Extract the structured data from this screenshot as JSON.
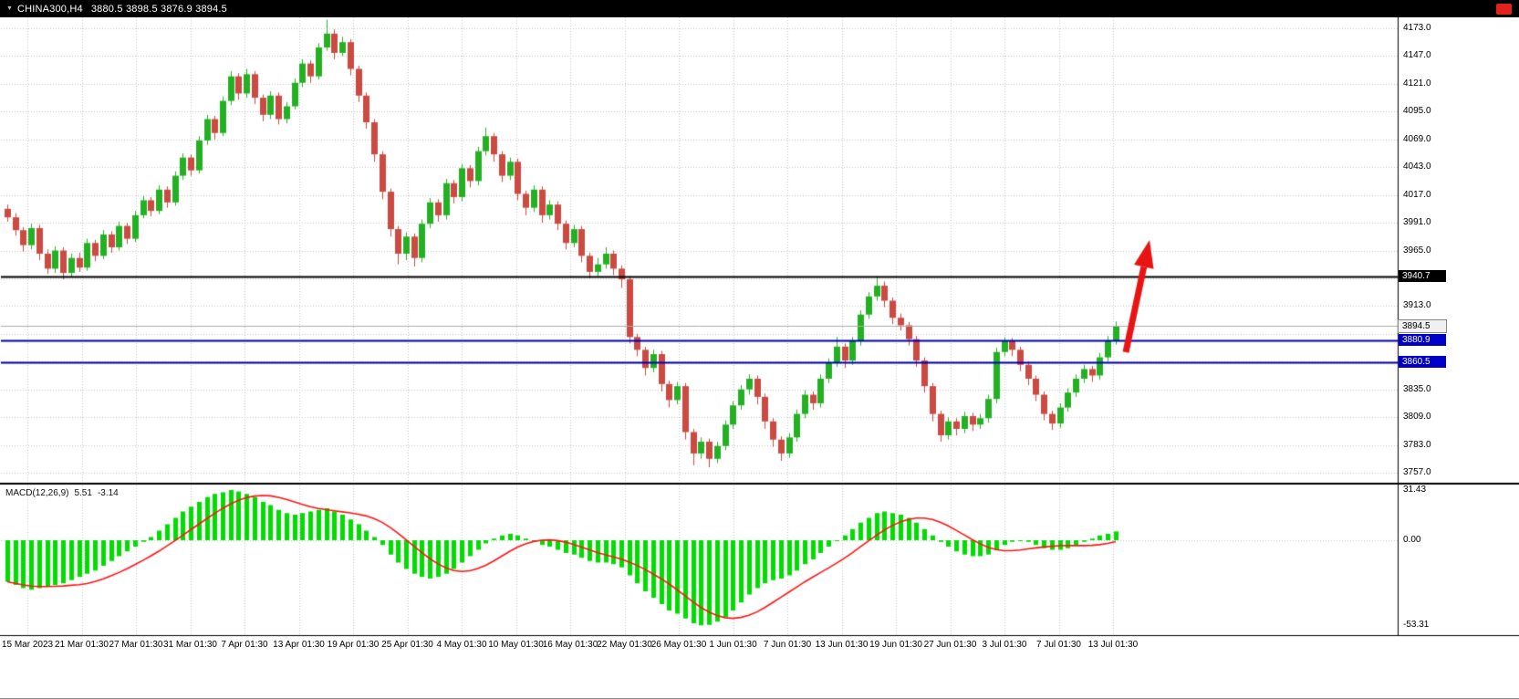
{
  "top_bar": {
    "marker_icon": "▼",
    "symbol": "CHINA300,H4",
    "ohlc_values": "3880.5 3898.5 3876.9 3894.5"
  },
  "indicator_label": {
    "name": "MACD(12,26,9)",
    "main_value": "5.51",
    "signal_value": "-3.14"
  },
  "price_axis": {
    "visible_labels": [
      4173,
      4147,
      4121,
      4095,
      4069,
      4043,
      4017,
      3991,
      3965,
      3913,
      3835,
      3809,
      3783,
      3757
    ]
  },
  "chart_data": {
    "type": "candlestick",
    "title": "CHINA300,H4",
    "timeframe": "H4",
    "last_ohlc": {
      "open": 3880.5,
      "high": 3898.5,
      "low": 3876.9,
      "close": 3894.5
    },
    "y_range": {
      "min": 3757,
      "max": 4173,
      "grid_step": 26
    },
    "x_labels": [
      "15 Mar 2023",
      "21 Mar 01:30",
      "27 Mar 01:30",
      "31 Mar 01:30",
      "7 Apr 01:30",
      "13 Apr 01:30",
      "19 Apr 01:30",
      "25 Apr 01:30",
      "4 May 01:30",
      "10 May 01:30",
      "16 May 01:30",
      "22 May 01:30",
      "26 May 01:30",
      "1 Jun 01:30",
      "7 Jun 01:30",
      "13 Jun 01:30",
      "19 Jun 01:30",
      "27 Jun 01:30",
      "3 Jul 01:30",
      "7 Jul 01:30",
      "13 Jul 01:30"
    ],
    "colors": {
      "bull": "#23b123",
      "bear": "#cb4a42",
      "grid": "#c6c6c6"
    },
    "candles": [
      [
        4004,
        4008,
        3992,
        3996
      ],
      [
        3996,
        4000,
        3979,
        3984
      ],
      [
        3984,
        3987,
        3964,
        3970
      ],
      [
        3970,
        3990,
        3966,
        3986
      ],
      [
        3986,
        3989,
        3956,
        3962
      ],
      [
        3962,
        3966,
        3943,
        3948
      ],
      [
        3948,
        3969,
        3944,
        3965
      ],
      [
        3965,
        3968,
        3938,
        3944
      ],
      [
        3944,
        3962,
        3940,
        3958
      ],
      [
        3958,
        3963,
        3945,
        3949
      ],
      [
        3949,
        3976,
        3946,
        3972
      ],
      [
        3972,
        3975,
        3955,
        3960
      ],
      [
        3960,
        3984,
        3957,
        3980
      ],
      [
        3980,
        3983,
        3963,
        3968
      ],
      [
        3968,
        3992,
        3965,
        3988
      ],
      [
        3988,
        3991,
        3971,
        3976
      ],
      [
        3976,
        4002,
        3973,
        3998
      ],
      [
        3998,
        4016,
        3995,
        4012
      ],
      [
        4012,
        4015,
        3997,
        4002
      ],
      [
        4002,
        4026,
        3999,
        4022
      ],
      [
        4022,
        4025,
        4005,
        4010
      ],
      [
        4010,
        4039,
        4007,
        4035
      ],
      [
        4035,
        4056,
        4031,
        4052
      ],
      [
        4052,
        4055,
        4035,
        4040
      ],
      [
        4040,
        4072,
        4037,
        4068
      ],
      [
        4068,
        4092,
        4064,
        4088
      ],
      [
        4088,
        4091,
        4069,
        4075
      ],
      [
        4075,
        4109,
        4072,
        4105
      ],
      [
        4105,
        4133,
        4101,
        4128
      ],
      [
        4128,
        4131,
        4106,
        4112
      ],
      [
        4112,
        4135,
        4108,
        4130
      ],
      [
        4130,
        4133,
        4102,
        4108
      ],
      [
        4108,
        4111,
        4086,
        4092
      ],
      [
        4092,
        4114,
        4088,
        4110
      ],
      [
        4110,
        4113,
        4083,
        4088
      ],
      [
        4088,
        4104,
        4084,
        4100
      ],
      [
        4100,
        4126,
        4097,
        4122
      ],
      [
        4122,
        4144,
        4118,
        4140
      ],
      [
        4140,
        4143,
        4122,
        4128
      ],
      [
        4128,
        4159,
        4125,
        4155
      ],
      [
        4155,
        4181,
        4152,
        4168
      ],
      [
        4168,
        4172,
        4144,
        4150
      ],
      [
        4150,
        4165,
        4147,
        4160
      ],
      [
        4160,
        4163,
        4129,
        4135
      ],
      [
        4135,
        4138,
        4104,
        4110
      ],
      [
        4110,
        4113,
        4079,
        4085
      ],
      [
        4085,
        4088,
        4048,
        4055
      ],
      [
        4055,
        4058,
        4013,
        4020
      ],
      [
        4020,
        4023,
        3978,
        3985
      ],
      [
        3985,
        3988,
        3952,
        3962
      ],
      [
        3962,
        3982,
        3956,
        3978
      ],
      [
        3978,
        3981,
        3950,
        3958
      ],
      [
        3958,
        3994,
        3954,
        3990
      ],
      [
        3990,
        4014,
        3986,
        4010
      ],
      [
        4010,
        4013,
        3992,
        3998
      ],
      [
        3998,
        4032,
        3994,
        4028
      ],
      [
        4028,
        4031,
        4009,
        4015
      ],
      [
        4015,
        4046,
        4011,
        4042
      ],
      [
        4042,
        4045,
        4024,
        4030
      ],
      [
        4030,
        4062,
        4026,
        4058
      ],
      [
        4058,
        4080,
        4054,
        4072
      ],
      [
        4072,
        4075,
        4048,
        4055
      ],
      [
        4055,
        4058,
        4029,
        4035
      ],
      [
        4035,
        4052,
        4031,
        4048
      ],
      [
        4048,
        4051,
        4012,
        4018
      ],
      [
        4018,
        4021,
        3998,
        4005
      ],
      [
        4005,
        4026,
        4001,
        4022
      ],
      [
        4022,
        4025,
        3991,
        3998
      ],
      [
        3998,
        4012,
        3994,
        4008
      ],
      [
        4008,
        4011,
        3984,
        3990
      ],
      [
        3990,
        3993,
        3966,
        3972
      ],
      [
        3972,
        3989,
        3968,
        3985
      ],
      [
        3985,
        3988,
        3954,
        3960
      ],
      [
        3960,
        3963,
        3939,
        3945
      ],
      [
        3945,
        3958,
        3941,
        3952
      ],
      [
        3952,
        3968,
        3948,
        3962
      ],
      [
        3962,
        3965,
        3942,
        3948
      ],
      [
        3948,
        3951,
        3930,
        3938
      ],
      [
        3938,
        3941,
        3878,
        3884
      ],
      [
        3884,
        3887,
        3866,
        3872
      ],
      [
        3872,
        3875,
        3848,
        3855
      ],
      [
        3855,
        3872,
        3851,
        3868
      ],
      [
        3868,
        3871,
        3833,
        3840
      ],
      [
        3840,
        3843,
        3818,
        3825
      ],
      [
        3825,
        3842,
        3821,
        3838
      ],
      [
        3838,
        3841,
        3788,
        3795
      ],
      [
        3795,
        3798,
        3764,
        3775
      ],
      [
        3775,
        3790,
        3770,
        3786
      ],
      [
        3786,
        3789,
        3762,
        3770
      ],
      [
        3770,
        3786,
        3766,
        3782
      ],
      [
        3782,
        3806,
        3778,
        3802
      ],
      [
        3802,
        3824,
        3798,
        3820
      ],
      [
        3820,
        3839,
        3816,
        3835
      ],
      [
        3835,
        3849,
        3830,
        3845
      ],
      [
        3845,
        3848,
        3821,
        3828
      ],
      [
        3828,
        3831,
        3798,
        3805
      ],
      [
        3805,
        3808,
        3781,
        3788
      ],
      [
        3788,
        3791,
        3768,
        3775
      ],
      [
        3775,
        3794,
        3771,
        3790
      ],
      [
        3790,
        3816,
        3786,
        3812
      ],
      [
        3812,
        3834,
        3808,
        3830
      ],
      [
        3830,
        3833,
        3816,
        3822
      ],
      [
        3822,
        3849,
        3818,
        3845
      ],
      [
        3845,
        3864,
        3841,
        3860
      ],
      [
        3860,
        3884,
        3856,
        3875
      ],
      [
        3875,
        3878,
        3855,
        3862
      ],
      [
        3862,
        3884,
        3858,
        3880
      ],
      [
        3880,
        3909,
        3876,
        3905
      ],
      [
        3905,
        3926,
        3901,
        3922
      ],
      [
        3922,
        3941,
        3918,
        3932
      ],
      [
        3932,
        3936,
        3912,
        3918
      ],
      [
        3918,
        3921,
        3896,
        3902
      ],
      [
        3902,
        3906,
        3890,
        3895
      ],
      [
        3895,
        3898,
        3876,
        3882
      ],
      [
        3882,
        3885,
        3856,
        3862
      ],
      [
        3862,
        3865,
        3832,
        3838
      ],
      [
        3838,
        3841,
        3805,
        3812
      ],
      [
        3812,
        3815,
        3786,
        3792
      ],
      [
        3792,
        3809,
        3788,
        3805
      ],
      [
        3805,
        3808,
        3792,
        3798
      ],
      [
        3798,
        3814,
        3794,
        3810
      ],
      [
        3810,
        3813,
        3796,
        3802
      ],
      [
        3802,
        3812,
        3798,
        3808
      ],
      [
        3808,
        3830,
        3804,
        3826
      ],
      [
        3826,
        3874,
        3822,
        3870
      ],
      [
        3870,
        3884,
        3866,
        3880
      ],
      [
        3880,
        3883,
        3866,
        3872
      ],
      [
        3872,
        3875,
        3852,
        3858
      ],
      [
        3858,
        3861,
        3839,
        3845
      ],
      [
        3845,
        3848,
        3824,
        3830
      ],
      [
        3830,
        3833,
        3806,
        3812
      ],
      [
        3812,
        3815,
        3797,
        3803
      ],
      [
        3803,
        3822,
        3799,
        3818
      ],
      [
        3818,
        3836,
        3814,
        3832
      ],
      [
        3832,
        3849,
        3828,
        3845
      ],
      [
        3845,
        3858,
        3841,
        3854
      ],
      [
        3854,
        3857,
        3842,
        3848
      ],
      [
        3848,
        3869,
        3844,
        3865
      ],
      [
        3865,
        3885,
        3861,
        3881
      ],
      [
        3880.5,
        3898.5,
        3876.9,
        3894.5
      ]
    ],
    "levels": [
      {
        "name": "resistance-level",
        "price": 3940.7,
        "label": "3940.7",
        "line_color": "#000000",
        "label_bg": "#000000",
        "label_fg": "#ffffff",
        "width": 2
      },
      {
        "name": "bid-price-level",
        "price": 3894.5,
        "label": "3894.5",
        "line_color": "#ababab",
        "label_bg": "#f0f0f0",
        "label_fg": "#000000",
        "width": 1
      },
      {
        "name": "support-level-upper",
        "price": 3880.9,
        "label": "3880.9",
        "line_color": "#0000b8",
        "label_bg": "#0000c8",
        "label_fg": "#ffffff",
        "width": 2
      },
      {
        "name": "support-level-lower",
        "price": 3860.5,
        "label": "3860.5",
        "line_color": "#0000b8",
        "label_bg": "#0000c8",
        "label_fg": "#ffffff",
        "width": 2
      }
    ],
    "trend_arrow": {
      "color": "#e81414",
      "tail": [
        1234,
        386
      ],
      "tip": [
        1260,
        263
      ]
    },
    "indicator": {
      "type": "bar",
      "name": "MACD(12,26,9)",
      "main_value": 5.51,
      "signal_value": -3.14,
      "signal_sma_period": 9,
      "colors": {
        "histogram": "#00dd00",
        "signal": "#ff1414"
      },
      "y_labels": [
        {
          "text": "31.43",
          "value": 31.43
        },
        {
          "text": "0.00",
          "value": 0
        },
        {
          "text": "-53.31",
          "value": -53.31
        }
      ],
      "histogram": [
        -26,
        -28,
        -30,
        -31,
        -30,
        -29,
        -28,
        -27,
        -25,
        -23,
        -21,
        -19,
        -16,
        -13,
        -10,
        -7,
        -4,
        -1,
        2,
        6,
        10,
        14,
        18,
        21,
        24,
        27,
        29,
        30,
        31.4,
        30.5,
        29,
        27,
        24,
        22,
        19,
        17,
        16,
        17,
        18,
        19,
        20,
        18,
        16,
        13,
        10,
        6,
        2,
        -3,
        -9,
        -14,
        -18,
        -21,
        -23,
        -24,
        -23,
        -21,
        -18,
        -14,
        -10,
        -6,
        -2,
        1,
        3,
        4,
        3,
        1,
        -1,
        -3,
        -4,
        -6,
        -8,
        -9,
        -11,
        -13,
        -14,
        -14,
        -15,
        -17,
        -22,
        -27,
        -32,
        -36,
        -40,
        -44,
        -46,
        -49,
        -52,
        -53.3,
        -53,
        -51,
        -48,
        -44,
        -39,
        -34,
        -30,
        -27,
        -25,
        -24,
        -22,
        -19,
        -15,
        -12,
        -8,
        -4,
        0,
        3,
        7,
        11,
        14,
        17,
        18,
        17,
        16,
        14,
        11,
        7,
        3,
        -1,
        -4,
        -7,
        -9,
        -10,
        -10,
        -9,
        -6,
        -3,
        -1,
        0,
        -1,
        -3,
        -5,
        -6,
        -6,
        -5,
        -3,
        -1,
        1,
        3,
        4,
        5.5
      ]
    }
  }
}
